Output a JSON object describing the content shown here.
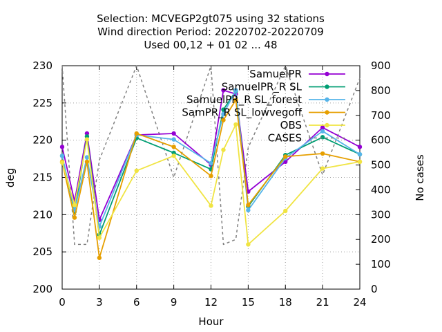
{
  "chart_data": {
    "type": "line",
    "title_lines": [
      "Selection: MCVEGP2gt075 using    32 stations",
      "Wind direction   Period: 20220702-20220709",
      "Used  00,12  + 01 02 ... 48"
    ],
    "xlabel": "Hour",
    "ylabel": "deg",
    "y2label": "No cases",
    "xlim": [
      0,
      24
    ],
    "ylim": [
      200,
      230
    ],
    "y2lim": [
      0,
      900
    ],
    "xticks": [
      "0",
      "3",
      "6",
      "9",
      "12",
      "15",
      "18",
      "21",
      "24"
    ],
    "yticks": [
      "200",
      "205",
      "210",
      "215",
      "220",
      "225",
      "230"
    ],
    "y2ticks": [
      "0",
      "100",
      "200",
      "300",
      "400",
      "500",
      "600",
      "700",
      "800",
      "900"
    ],
    "legend_position": "top-right",
    "series": [
      {
        "name": "SamuelPR",
        "color": "#9400d3",
        "marker": "circle",
        "x": [
          0,
          1,
          2,
          3,
          6,
          9,
          12,
          13,
          14,
          15,
          18,
          21,
          24
        ],
        "y": [
          219.1,
          211.8,
          220.9,
          209.3,
          220.7,
          220.9,
          216.7,
          226.7,
          226.2,
          213.1,
          217.1,
          221.7,
          219.1
        ]
      },
      {
        "name": "SamuelPR_R SL",
        "color": "#009e73",
        "marker": "circle",
        "x": [
          0,
          1,
          2,
          3,
          6,
          9,
          12,
          13,
          14,
          15,
          18,
          21,
          24
        ],
        "y": [
          217.9,
          210.4,
          220.5,
          207.3,
          220.3,
          218.3,
          216.1,
          224.1,
          226.6,
          211.1,
          218.0,
          220.4,
          218.1
        ]
      },
      {
        "name": "SamuelPR_R SL_forest",
        "color": "#56b4e9",
        "marker": "circle",
        "x": [
          0,
          1,
          2,
          3,
          6,
          9,
          12,
          13,
          14,
          15,
          18,
          21,
          24
        ],
        "y": [
          217.9,
          210.6,
          217.7,
          208.4,
          220.7,
          220.1,
          216.9,
          223.5,
          226.7,
          210.6,
          217.6,
          221.2,
          218.1
        ]
      },
      {
        "name": "SamPR_R SL_lowvegoff",
        "color": "#e69f00",
        "marker": "circle",
        "x": [
          0,
          1,
          2,
          3,
          6,
          9,
          12,
          13,
          14,
          15,
          18,
          21,
          24
        ],
        "y": [
          217.1,
          209.6,
          217.1,
          204.2,
          220.9,
          219.1,
          215.2,
          222.7,
          225.4,
          211.3,
          217.8,
          218.2,
          217.1
        ]
      },
      {
        "name": "OBS",
        "color": "#f0e442",
        "marker": "circle",
        "x": [
          0,
          1,
          2,
          3,
          6,
          9,
          12,
          13,
          14,
          15,
          18,
          21,
          24
        ],
        "y": [
          217.0,
          211.3,
          220.1,
          206.9,
          215.9,
          217.9,
          211.2,
          218.7,
          222.1,
          206.0,
          210.5,
          216.2,
          217.1
        ]
      },
      {
        "name": "CASES",
        "color": "#808080",
        "marker": "none",
        "axis": "y2",
        "x": [
          0,
          1,
          2,
          3,
          6,
          9,
          12,
          13,
          14,
          15,
          18,
          21,
          24
        ],
        "y": [
          900,
          180,
          180,
          520,
          900,
          450,
          900,
          180,
          200,
          570,
          900,
          460,
          850
        ]
      }
    ]
  }
}
